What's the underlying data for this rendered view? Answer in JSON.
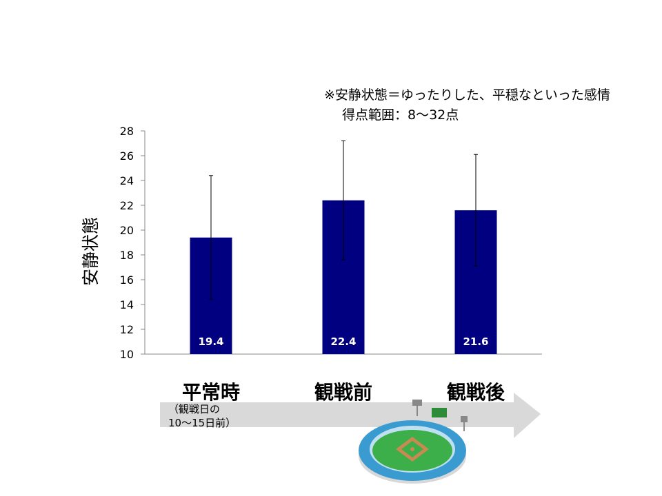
{
  "note": {
    "line1": "※安静状態＝ゆったりした、平穏なといった感情",
    "line2": "得点範囲：8～32点"
  },
  "chart_data": {
    "type": "bar",
    "ylabel": "安静状態",
    "ylim": [
      10,
      28
    ],
    "yticks": [
      10,
      12,
      14,
      16,
      18,
      20,
      22,
      24,
      26,
      28
    ],
    "grid": false,
    "categories": [
      "平常時",
      "観戦前",
      "観戦後"
    ],
    "values": [
      19.4,
      22.4,
      21.6
    ],
    "value_labels": [
      "19.4",
      "22.4",
      "21.6"
    ],
    "error_upper": [
      24.4,
      27.2,
      26.1
    ],
    "error_lower": [
      14.4,
      17.6,
      17.1
    ],
    "bar_color": "#000080",
    "label_color": "#ffffff"
  },
  "timeline": {
    "subnote": "（観戦日の\n10～15日前）",
    "arrow_color": "#d9d9d9"
  },
  "illustration": {
    "name": "baseball-stadium-icon",
    "field_color": "#3cae4a",
    "stand_color": "#3a9bd0"
  }
}
